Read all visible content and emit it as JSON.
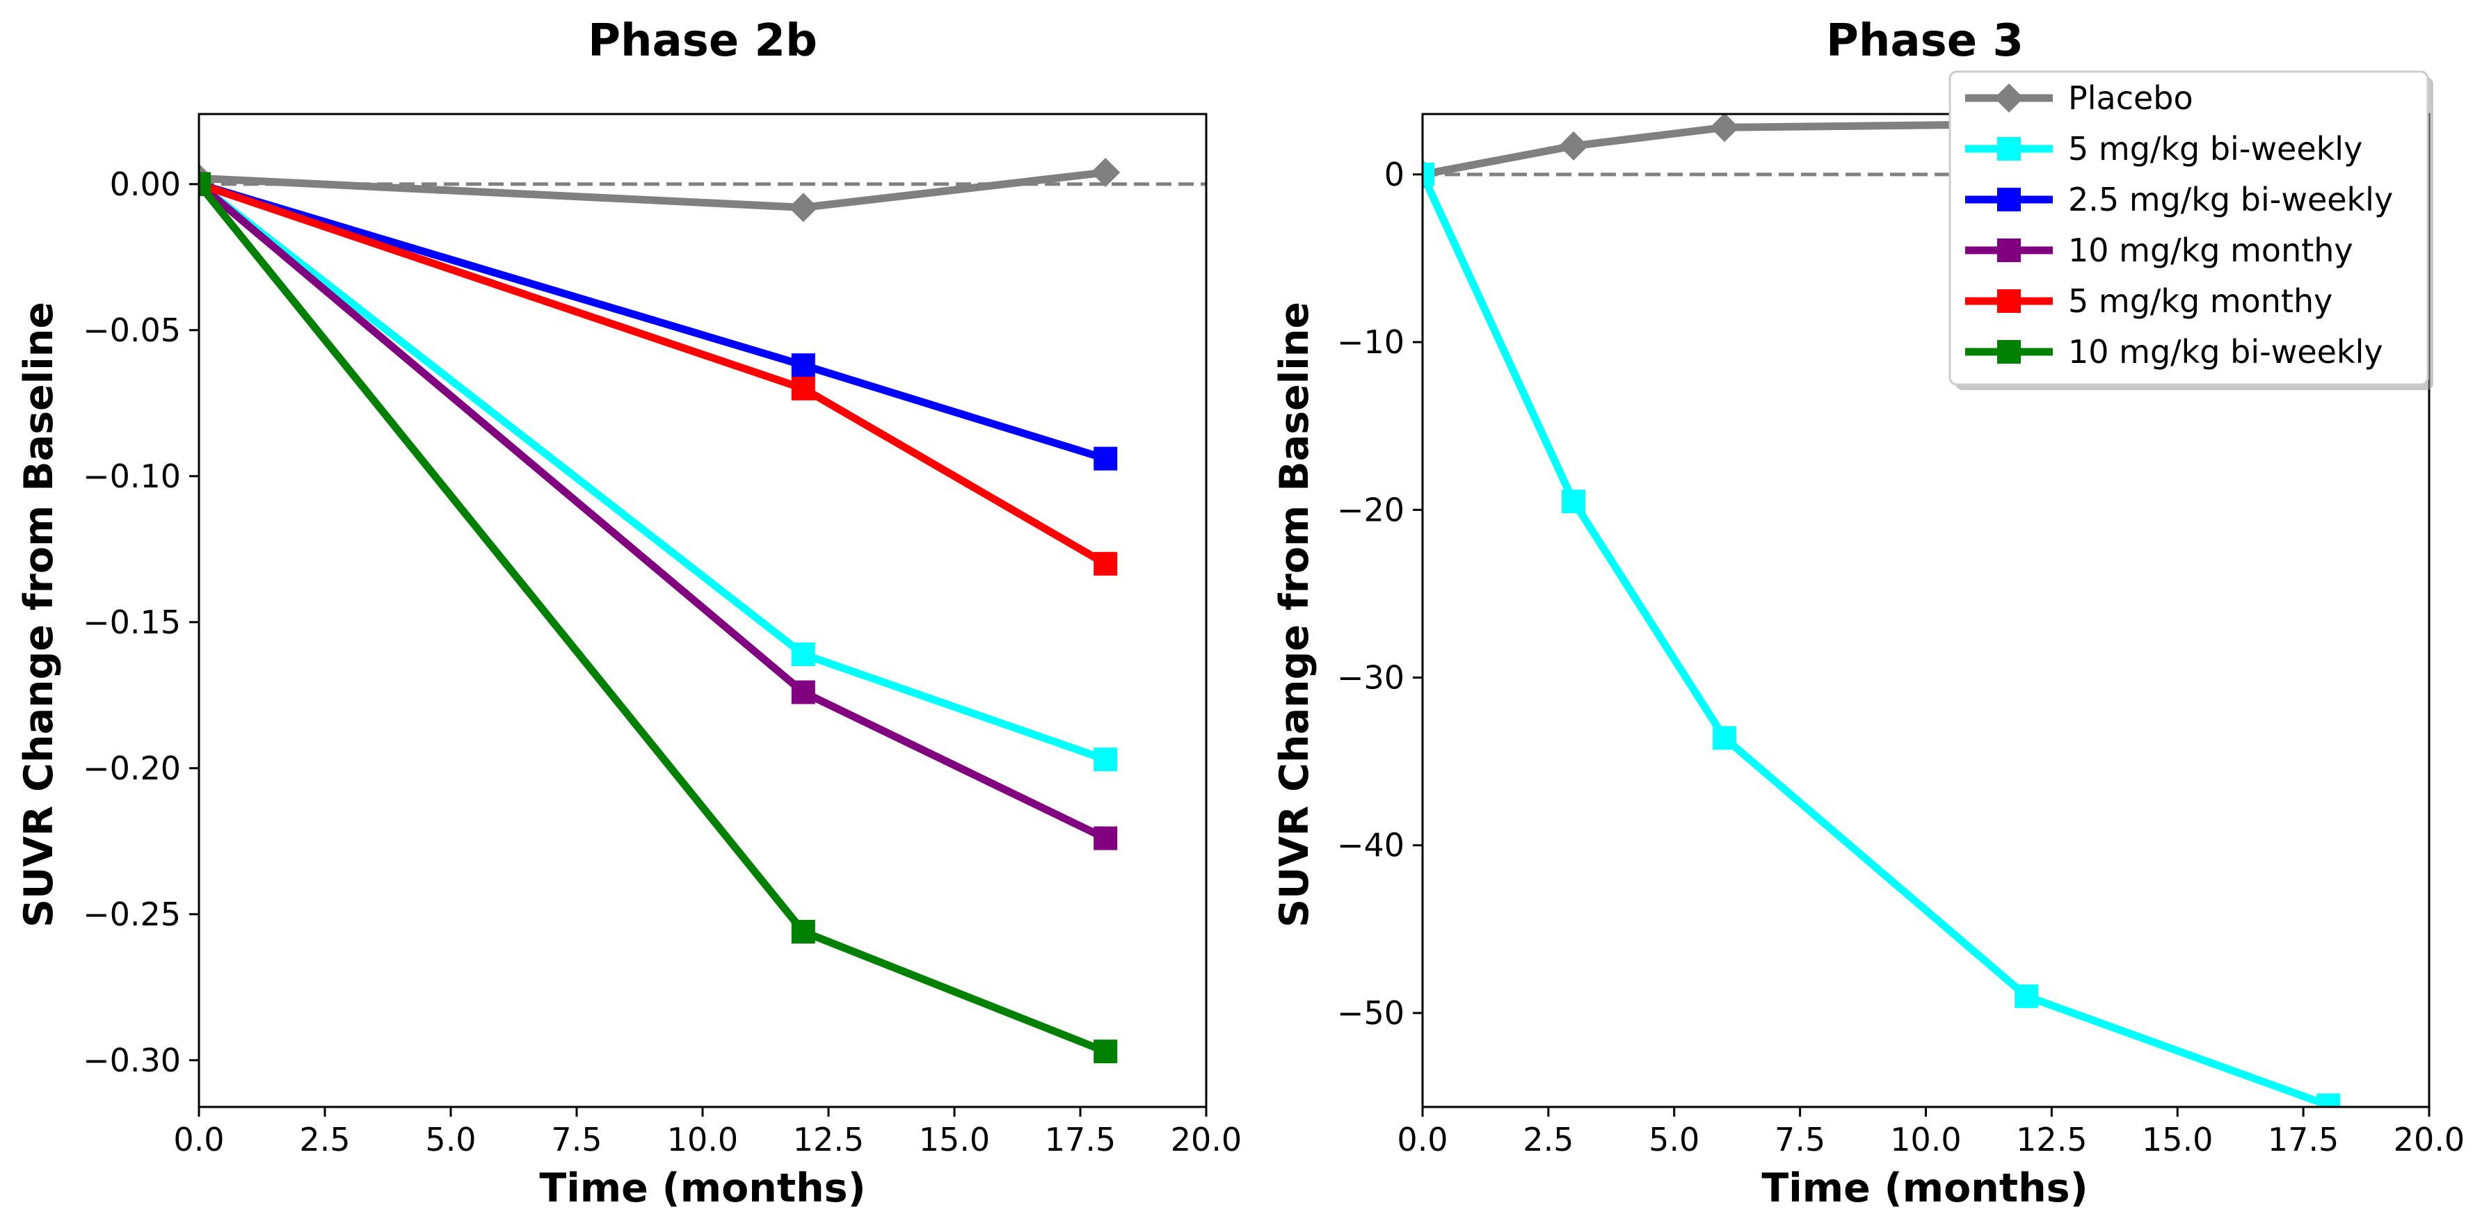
{
  "chart_data": [
    {
      "type": "line",
      "title": "Phase 2b",
      "xlabel": "Time (months)",
      "ylabel": "SUVR Change from Baseline",
      "xlim": [
        0,
        20
      ],
      "ylim": [
        -0.316,
        0.024
      ],
      "xticks": [
        "0.0",
        "2.5",
        "5.0",
        "7.5",
        "10.0",
        "12.5",
        "15.0",
        "17.5",
        "20.0"
      ],
      "xtick_values": [
        0,
        2.5,
        5,
        7.5,
        10,
        12.5,
        15,
        17.5,
        20
      ],
      "yticks": [
        "0.00",
        "−0.05",
        "−0.10",
        "−0.15",
        "−0.20",
        "−0.25",
        "−0.30"
      ],
      "ytick_values": [
        0,
        -0.05,
        -0.1,
        -0.15,
        -0.2,
        -0.25,
        -0.3
      ],
      "reference_line": {
        "y": 0,
        "style": "dashed",
        "color": "#808080"
      },
      "grid": false,
      "series": [
        {
          "name": "Placebo",
          "color": "#808080",
          "marker": "diamond",
          "x": [
            0,
            12,
            18
          ],
          "values": [
            0.002,
            -0.008,
            0.004
          ]
        },
        {
          "name": "5 mg/kg bi-weekly",
          "color": "#00ffff",
          "marker": "square",
          "x": [
            0,
            12,
            18
          ],
          "values": [
            0.0,
            -0.161,
            -0.197
          ]
        },
        {
          "name": "2.5 mg/kg bi-weekly",
          "color": "#0000ff",
          "marker": "square",
          "x": [
            0,
            12,
            18
          ],
          "values": [
            0.0,
            -0.062,
            -0.094
          ]
        },
        {
          "name": "10 mg/kg monthy",
          "color": "#800080",
          "marker": "square",
          "x": [
            0,
            12,
            18
          ],
          "values": [
            0.0,
            -0.174,
            -0.224
          ]
        },
        {
          "name": "5 mg/kg monthy",
          "color": "#ff0000",
          "marker": "square",
          "x": [
            0,
            12,
            18
          ],
          "values": [
            0.0,
            -0.07,
            -0.13
          ]
        },
        {
          "name": "10 mg/kg bi-weekly",
          "color": "#008000",
          "marker": "square",
          "x": [
            0,
            12,
            18
          ],
          "values": [
            0.0,
            -0.256,
            -0.297
          ]
        }
      ]
    },
    {
      "type": "line",
      "title": "Phase 3",
      "xlabel": "Time (months)",
      "ylabel": "SUVR Change from Baseline",
      "xlim": [
        0,
        20
      ],
      "ylim": [
        -55.6,
        3.6
      ],
      "xticks": [
        "0.0",
        "2.5",
        "5.0",
        "7.5",
        "10.0",
        "12.5",
        "15.0",
        "17.5",
        "20.0"
      ],
      "xtick_values": [
        0,
        2.5,
        5,
        7.5,
        10,
        12.5,
        15,
        17.5,
        20
      ],
      "yticks": [
        "0",
        "−10",
        "−20",
        "−30",
        "−40",
        "−50"
      ],
      "ytick_values": [
        0,
        -10,
        -20,
        -30,
        -40,
        -50
      ],
      "reference_line": {
        "y": 0,
        "style": "dashed",
        "color": "#808080"
      },
      "grid": false,
      "legend_placement": "top-right",
      "series": [
        {
          "name": "Placebo",
          "color": "#808080",
          "marker": "diamond",
          "x": [
            0,
            3,
            6,
            12
          ],
          "values": [
            0.0,
            1.7,
            2.8,
            3.0
          ]
        },
        {
          "name": "5 mg/kg bi-weekly",
          "color": "#00ffff",
          "marker": "square",
          "x": [
            0,
            3,
            6,
            12,
            18
          ],
          "values": [
            0.0,
            -19.5,
            -33.6,
            -49.0,
            -55.5
          ]
        }
      ],
      "legend": [
        {
          "label": "Placebo",
          "color": "#808080",
          "marker": "diamond"
        },
        {
          "label": "5 mg/kg bi-weekly",
          "color": "#00ffff",
          "marker": "square"
        },
        {
          "label": "2.5 mg/kg bi-weekly",
          "color": "#0000ff",
          "marker": "square"
        },
        {
          "label": "10 mg/kg monthy",
          "color": "#800080",
          "marker": "square"
        },
        {
          "label": "5 mg/kg monthy",
          "color": "#ff0000",
          "marker": "square"
        },
        {
          "label": "10 mg/kg bi-weekly",
          "color": "#008000",
          "marker": "square"
        }
      ]
    }
  ]
}
